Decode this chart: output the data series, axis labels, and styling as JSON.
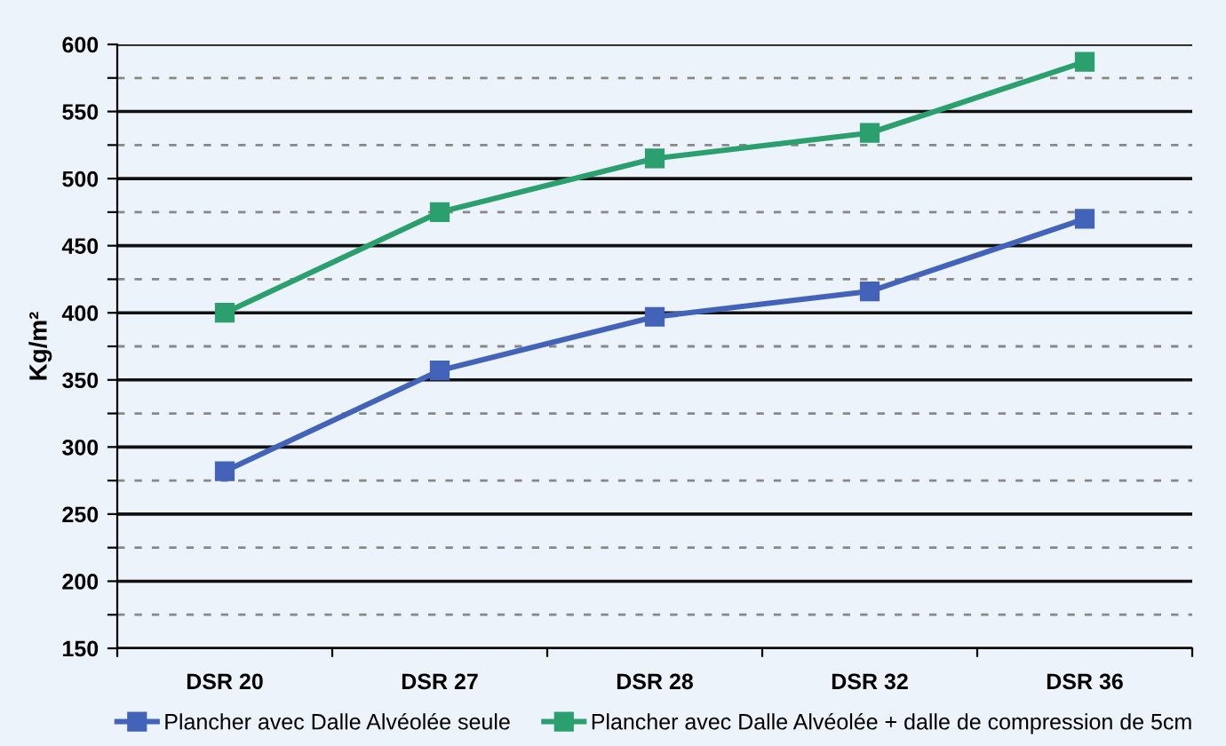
{
  "chart_data": {
    "type": "line",
    "ylabel": "Kg/m²",
    "categories": [
      "DSR 20",
      "DSR 27",
      "DSR 28",
      "DSR 32",
      "DSR 36"
    ],
    "series": [
      {
        "name": "Plancher avec Dalle Alvéolée seule",
        "color": "#4263b8",
        "values": [
          282,
          357,
          397,
          416,
          470
        ]
      },
      {
        "name": "Plancher avec Dalle Alvéolée + dalle de compression de 5cm",
        "color": "#2ba06e",
        "values": [
          400,
          475,
          515,
          534,
          587
        ]
      }
    ],
    "ylim": [
      150,
      600
    ],
    "yticks": [
      150,
      {
        "value": 175,
        "label": null
      },
      200,
      {
        "value": 225,
        "label": null
      },
      250,
      {
        "value": 275,
        "label": null
      },
      300,
      {
        "value": 325,
        "label": null
      },
      350,
      {
        "value": 375,
        "label": null
      },
      400,
      {
        "value": 425,
        "label": null
      },
      450,
      {
        "value": 475,
        "label": null
      },
      500,
      {
        "value": 525,
        "label": null
      },
      550,
      {
        "value": 575,
        "label": null
      },
      600
    ],
    "grid": "y",
    "legend": "bottom",
    "marker": "square",
    "line_style": "solid"
  }
}
